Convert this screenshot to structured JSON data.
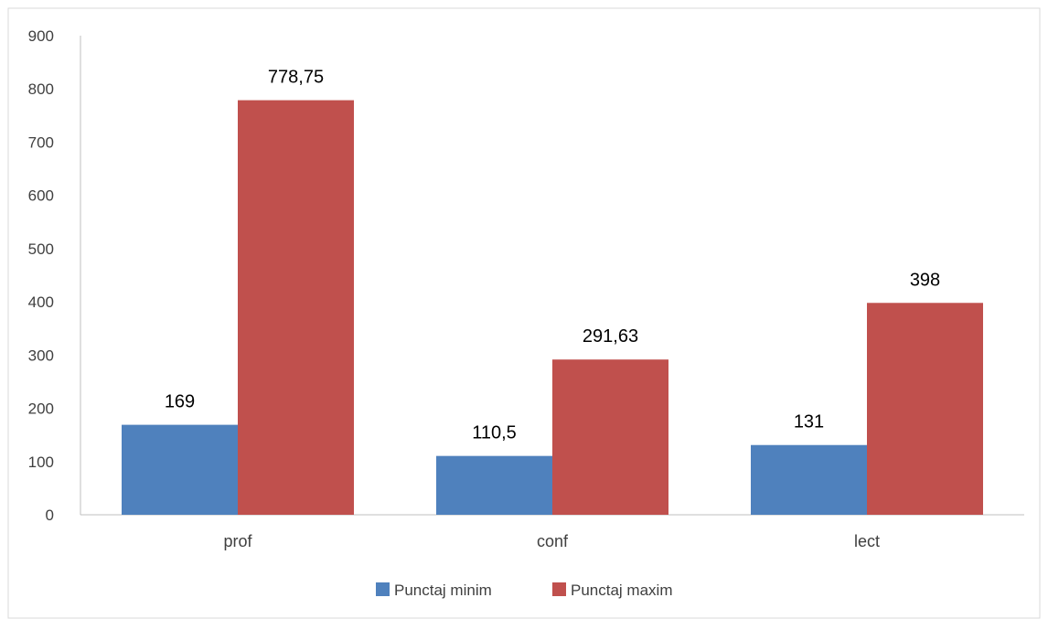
{
  "chart_data": {
    "type": "bar",
    "categories": [
      "prof",
      "conf",
      "lect"
    ],
    "series": [
      {
        "name": "Punctaj minim",
        "values": [
          169,
          110.5,
          131
        ],
        "labels": [
          "169",
          "110,5",
          "131"
        ],
        "color": "#4f81bd"
      },
      {
        "name": "Punctaj maxim",
        "values": [
          778.75,
          291.63,
          398
        ],
        "labels": [
          "778,75",
          "291,63",
          "398"
        ],
        "color": "#c0504d"
      }
    ],
    "ylim": [
      0,
      900
    ],
    "yticks": [
      0,
      100,
      200,
      300,
      400,
      500,
      600,
      700,
      800,
      900
    ],
    "grid": false,
    "legend_position": "bottom"
  }
}
